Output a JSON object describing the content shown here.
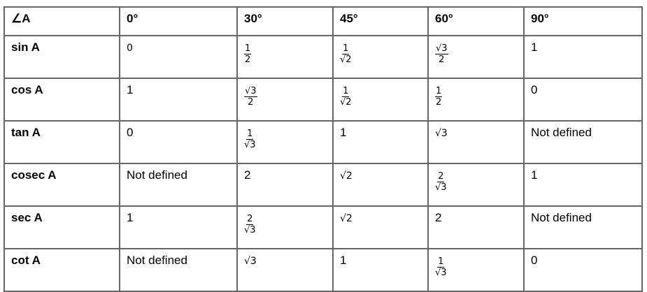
{
  "table": {
    "header": [
      "∠A",
      "0°",
      "30°",
      "45°",
      "60°",
      "90°"
    ],
    "rows": [
      {
        "label": "sin A",
        "cells": [
          {
            "t": "0",
            "math": true
          },
          {
            "num": "1",
            "den": "2"
          },
          {
            "num": "1",
            "den": "√2"
          },
          {
            "num": "√3",
            "den": "2"
          },
          {
            "t": "1"
          }
        ]
      },
      {
        "label": "cos A",
        "cells": [
          {
            "t": "1"
          },
          {
            "num": "√3",
            "den": "2"
          },
          {
            "num": "1",
            "den": "√2"
          },
          {
            "num": "1",
            "den": "2"
          },
          {
            "t": "0"
          }
        ]
      },
      {
        "label": "tan A",
        "cells": [
          {
            "t": "0"
          },
          {
            "num": "1",
            "den": "√3"
          },
          {
            "t": "1"
          },
          {
            "t": "√3",
            "math": true
          },
          {
            "t": "Not defined"
          }
        ]
      },
      {
        "label": "cosec A",
        "cells": [
          {
            "t": "Not defined"
          },
          {
            "t": "2"
          },
          {
            "t": "√2",
            "math": true
          },
          {
            "num": "2",
            "den": "√3"
          },
          {
            "t": "1"
          }
        ]
      },
      {
        "label": "sec A",
        "cells": [
          {
            "t": "1"
          },
          {
            "num": "2",
            "den": "√3"
          },
          {
            "t": "√2",
            "math": true
          },
          {
            "t": "2"
          },
          {
            "t": "Not defined"
          }
        ]
      },
      {
        "label": "cot A",
        "cells": [
          {
            "t": "Not defined"
          },
          {
            "t": "√3",
            "math": true
          },
          {
            "t": "1"
          },
          {
            "num": "1",
            "den": "√3"
          },
          {
            "t": "0"
          }
        ]
      }
    ]
  }
}
